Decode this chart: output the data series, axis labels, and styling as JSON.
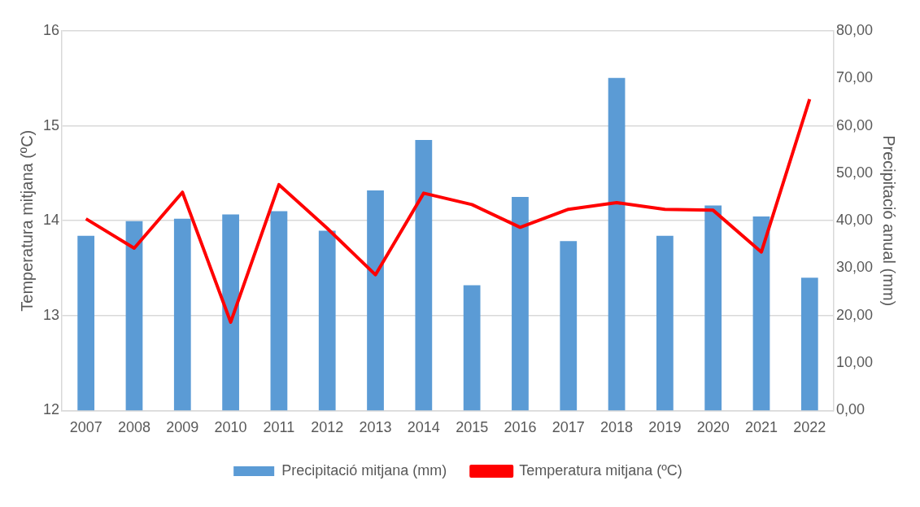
{
  "chart_data": {
    "type": "bar",
    "categories": [
      "2007",
      "2008",
      "2009",
      "2010",
      "2011",
      "2012",
      "2013",
      "2014",
      "2015",
      "2016",
      "2017",
      "2018",
      "2019",
      "2020",
      "2021",
      "2022"
    ],
    "series": [
      {
        "name": "Precipitació mitjana (mm)",
        "axis": "y2",
        "color": "#5b9bd5",
        "values": [
          36.8,
          39.9,
          40.4,
          41.3,
          42.0,
          37.9,
          46.4,
          57.0,
          26.4,
          45.0,
          35.7,
          70.1,
          36.8,
          43.2,
          40.9,
          28.0
        ]
      },
      {
        "name": "Temperatura mitjana (ºC)",
        "type": "line",
        "axis": "y",
        "color": "#ff0000",
        "values": [
          14.02,
          13.71,
          14.3,
          12.93,
          14.38,
          13.92,
          13.43,
          14.29,
          14.17,
          13.93,
          14.12,
          14.19,
          14.12,
          14.11,
          13.67,
          15.28
        ]
      }
    ],
    "ylabel": "Temperatura mitjana (ºC)",
    "y2label": "Precipitació anual (mm)",
    "ylim": [
      12,
      16
    ],
    "yticks": [
      12,
      13,
      14,
      15,
      16
    ],
    "y2lim": [
      0,
      80
    ],
    "y2ticks": [
      {
        "value": 0,
        "label": "0,00"
      },
      {
        "value": 10,
        "label": "10,00"
      },
      {
        "value": 20,
        "label": "20,00"
      },
      {
        "value": 30,
        "label": "30,00"
      },
      {
        "value": 40,
        "label": "40,00"
      },
      {
        "value": 50,
        "label": "50,00"
      },
      {
        "value": 60,
        "label": "60,00"
      },
      {
        "value": 70,
        "label": "70,00"
      },
      {
        "value": 80,
        "label": "80,00"
      }
    ],
    "grid": "y",
    "legend": "bottom",
    "marker": "none",
    "line_style": "solid"
  }
}
